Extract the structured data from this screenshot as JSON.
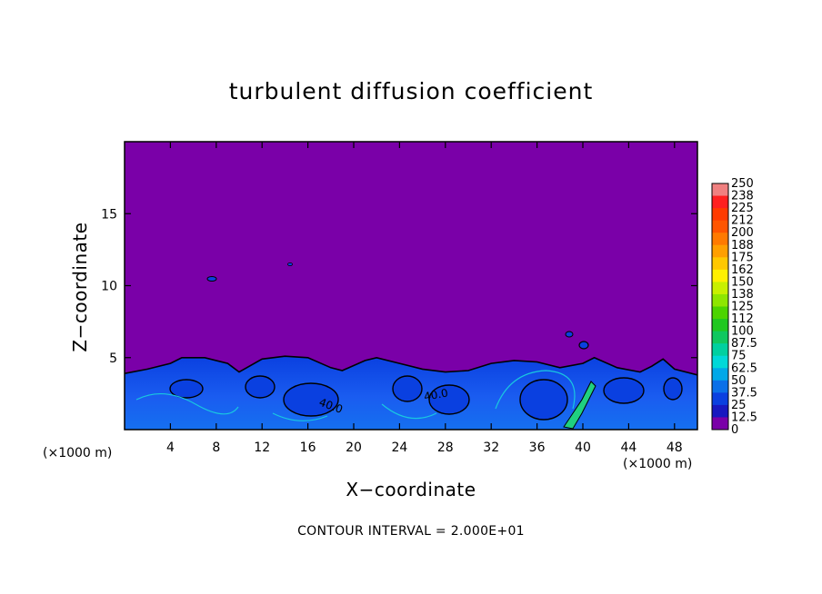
{
  "chart_data": {
    "type": "heatmap",
    "title": "turbulent diffusion coefficient",
    "xlabel": "X−coordinate",
    "ylabel": "Z−coordinate",
    "x_unit_label": "(×1000 m)",
    "xlim": [
      0,
      50
    ],
    "ylim": [
      0,
      20
    ],
    "x_ticks": [
      4,
      8,
      12,
      16,
      20,
      24,
      28,
      32,
      36,
      40,
      44,
      48
    ],
    "y_ticks": [
      5,
      10,
      15
    ],
    "contour_interval_text": "CONTOUR INTERVAL = 2.000E+01",
    "contour_labels": [
      "40.0",
      "40.0"
    ],
    "colorbar": {
      "levels": [
        "250",
        "238",
        "225",
        "212",
        "200",
        "188",
        "175",
        "162",
        "150",
        "138",
        "125",
        "112",
        "100",
        "87.5",
        "75",
        "62.5",
        "50",
        "37.5",
        "25",
        "12.5",
        "0"
      ],
      "colors": [
        "#f08080",
        "#ff2020",
        "#ff3a00",
        "#ff5500",
        "#ff7a00",
        "#ff9f00",
        "#ffc800",
        "#fff000",
        "#c8f000",
        "#8ee600",
        "#4cd400",
        "#20c820",
        "#10c860",
        "#00d0a0",
        "#00d8d8",
        "#00a8e8",
        "#0a70e8",
        "#0a40e0",
        "#1818c0",
        "#3a00b0",
        "#7a00a8"
      ]
    },
    "background_color": "#7a00a8",
    "series": [
      {
        "name": "",
        "surface_layer": [
          [
            0,
            3.9
          ],
          [
            2,
            4.2
          ],
          [
            4,
            4.6
          ],
          [
            5,
            5.0
          ],
          [
            7,
            5.0
          ],
          [
            9,
            4.6
          ],
          [
            10,
            4.0
          ],
          [
            12,
            4.9
          ],
          [
            14,
            5.1
          ],
          [
            16,
            5.0
          ],
          [
            18,
            4.3
          ],
          [
            19,
            4.1
          ],
          [
            21,
            4.8
          ],
          [
            22,
            5.0
          ],
          [
            24,
            4.6
          ],
          [
            26,
            4.2
          ],
          [
            28,
            4.0
          ],
          [
            30,
            4.1
          ],
          [
            32,
            4.6
          ],
          [
            34,
            4.8
          ],
          [
            36,
            4.7
          ],
          [
            38,
            4.3
          ],
          [
            40,
            4.6
          ],
          [
            41,
            5.0
          ],
          [
            43,
            4.3
          ],
          [
            45,
            4.0
          ],
          [
            46,
            4.4
          ],
          [
            47,
            4.9
          ],
          [
            48,
            4.2
          ],
          [
            50,
            3.8
          ]
        ]
      }
    ]
  }
}
